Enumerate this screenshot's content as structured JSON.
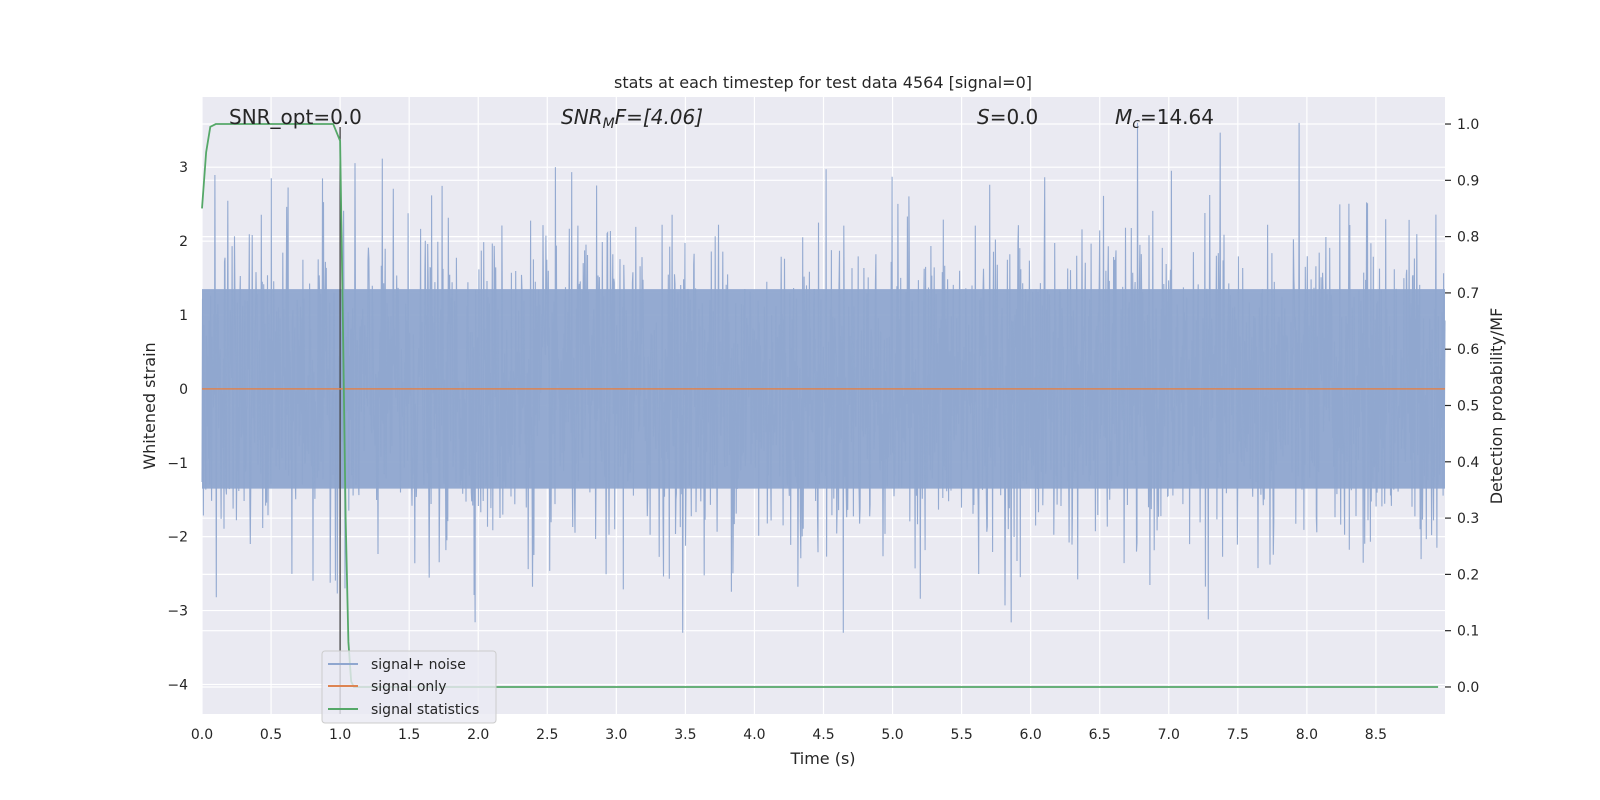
{
  "chart_data": {
    "type": "line",
    "title": "stats at each timestep for test data 4564 [signal=0]",
    "xlabel": "Time (s)",
    "ylabel": "Whitened strain",
    "y2label": "Detection probability/MF",
    "xlim": [
      0.0,
      9.0
    ],
    "ylim": [
      -4.4,
      3.95
    ],
    "y2lim": [
      -0.048,
      1.048
    ],
    "x_ticks": [
      "0.0",
      "0.5",
      "1.0",
      "1.5",
      "2.0",
      "2.5",
      "3.0",
      "3.5",
      "4.0",
      "4.5",
      "5.0",
      "5.5",
      "6.0",
      "6.5",
      "7.0",
      "7.5",
      "8.0",
      "8.5"
    ],
    "y_ticks": [
      "3",
      "2",
      "1",
      "0",
      "−1",
      "−2",
      "−3",
      "−4"
    ],
    "y2_ticks": [
      "1.0",
      "0.9",
      "0.8",
      "0.7",
      "0.6",
      "0.5",
      "0.4",
      "0.3",
      "0.2",
      "0.1",
      "0.0"
    ],
    "grid": true,
    "legend_position": "lower-left",
    "annotations": {
      "snr_opt": "SNR_opt=0.0",
      "snr_mf_italic": "SNR",
      "snr_mf_sub": "M",
      "snr_mf_rest": "F=[4.06]",
      "s_italic": "S",
      "s_rest": "=0.0",
      "mc_italic": "M",
      "mc_sub": "c",
      "mc_rest": "=14.64"
    },
    "vline_x": 1.0,
    "series": [
      {
        "name": "signal+ noise",
        "color": "#8fa6cf",
        "axis": "left",
        "x_range": [
          0.0,
          9.0
        ],
        "envelope_y": [
          -3.3,
          3.6
        ],
        "description_values": "whitened noise samples, roughly Gaussian with unit variance"
      },
      {
        "name": "signal only",
        "color": "#dd8452",
        "axis": "left",
        "x": [
          0.0,
          9.0
        ],
        "y": [
          0.0,
          0.0
        ]
      },
      {
        "name": "signal statistics",
        "color": "#55a868",
        "axis": "right",
        "x": [
          0.0,
          0.03,
          0.06,
          0.1,
          0.2,
          0.5,
          0.95,
          1.0,
          1.02,
          1.04,
          1.06,
          1.08,
          1.1,
          1.5,
          2.0,
          3.0,
          4.0,
          5.0,
          6.0,
          7.0,
          8.0,
          8.95
        ],
        "y": [
          0.85,
          0.95,
          0.995,
          1.0,
          1.0,
          1.0,
          1.0,
          0.97,
          0.65,
          0.3,
          0.08,
          0.01,
          0.0,
          0.0,
          0.0,
          0.0,
          0.0,
          0.0,
          0.0,
          0.0,
          0.0,
          0.0
        ]
      }
    ]
  }
}
